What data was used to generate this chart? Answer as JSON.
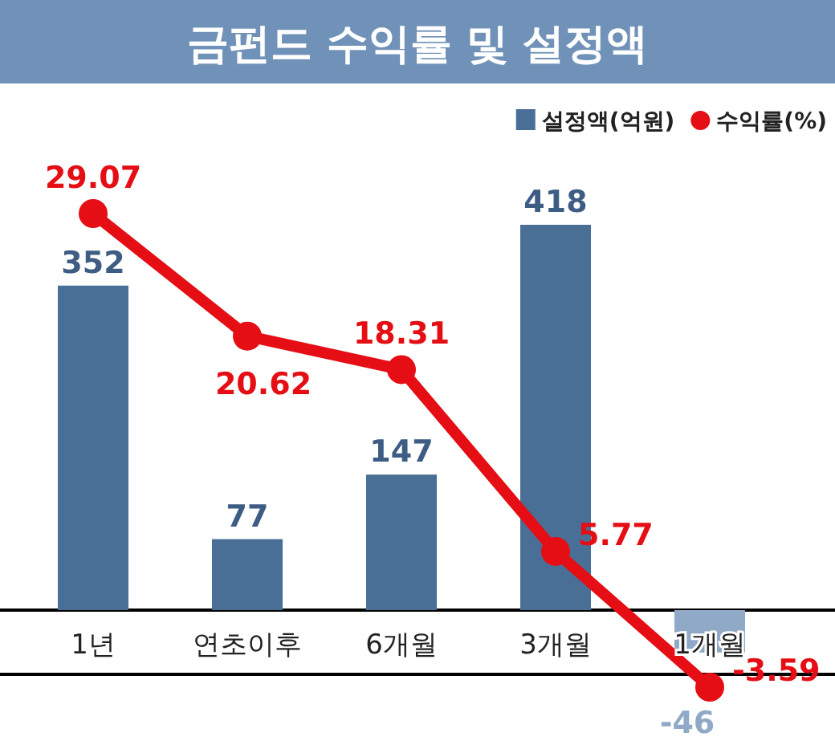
{
  "chart_data": {
    "type": "bar",
    "title": "금펀드 수익률 및 설정액",
    "categories": [
      "1년",
      "연초이후",
      "6개월",
      "3개월",
      "1개월"
    ],
    "series": [
      {
        "name": "설정액(억원)",
        "axis": "y",
        "color": "#4a6f96",
        "colors": [
          "#4a6f96",
          "#4a6f96",
          "#4a6f96",
          "#4a6f96",
          "#8fa9c6"
        ],
        "values": [
          352,
          77,
          147,
          418,
          -46
        ]
      },
      {
        "name": "수익률(%)",
        "type": "line",
        "axis": "y2",
        "color": "#e50e14",
        "values": [
          29.07,
          20.62,
          18.31,
          5.77,
          -3.59
        ]
      }
    ],
    "data_labels": true,
    "legend": "top right",
    "marker": "circle",
    "line_style": "solid",
    "tick_labels": "x"
  }
}
